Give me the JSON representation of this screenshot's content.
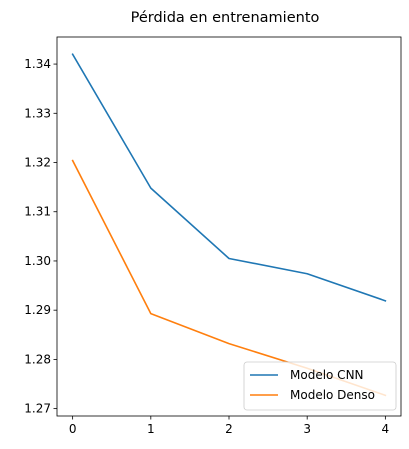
{
  "chart_data": {
    "type": "line",
    "title": "Pérdida en entrenamiento",
    "xlabel": "",
    "ylabel": "",
    "x": [
      0,
      1,
      2,
      3,
      4
    ],
    "x_ticks": [
      "0",
      "1",
      "2",
      "3",
      "4"
    ],
    "y_ticks": [
      "1.27",
      "1.28",
      "1.29",
      "1.30",
      "1.31",
      "1.32",
      "1.33",
      "1.34"
    ],
    "xlim": [
      -0.2,
      4.2
    ],
    "ylim": [
      1.2685,
      1.3455
    ],
    "grid": false,
    "legend_position": "lower-right",
    "series": [
      {
        "name": "Modelo CNN",
        "color": "#1f77b4",
        "values": [
          1.342,
          1.3148,
          1.3005,
          1.2974,
          1.2919
        ]
      },
      {
        "name": "Modelo Denso",
        "color": "#ff7f0e",
        "values": [
          1.3204,
          1.2893,
          1.2832,
          1.2782,
          1.2727
        ]
      }
    ]
  }
}
